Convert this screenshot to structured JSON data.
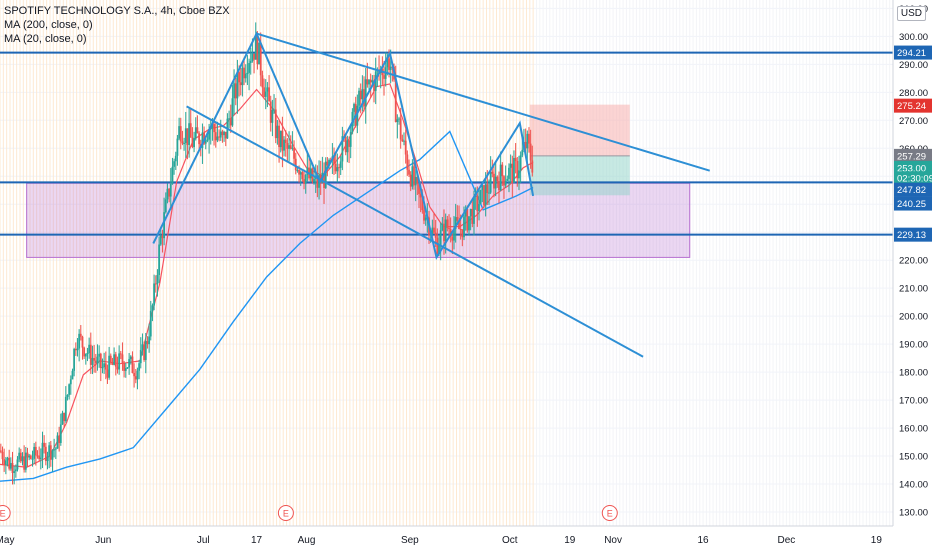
{
  "header": {
    "symbol_line": "SPOTIFY TECHNOLOGY S.A., 4h, Cboe BZX",
    "ma200_line": "MA (200, close, 0)",
    "ma20_line": "MA (20, close, 0)",
    "currency": "USD"
  },
  "chart_data": {
    "type": "candlestick",
    "y_axis": {
      "min": 125,
      "max": 313,
      "ticks": [
        130,
        140,
        150,
        160,
        170,
        180,
        190,
        200,
        210,
        220,
        230,
        240,
        250,
        260,
        270,
        280,
        290,
        300,
        310
      ]
    },
    "x_axis": {
      "months": [
        {
          "label": "May",
          "x": 0.0
        },
        {
          "label": "Jun",
          "x": 31.0
        },
        {
          "label": "Jul",
          "x": 61.0
        },
        {
          "label": "17",
          "x": 77.0
        },
        {
          "label": "Aug",
          "x": 92.0
        },
        {
          "label": "Sep",
          "x": 123.0
        },
        {
          "label": "Oct",
          "x": 153.0
        },
        {
          "label": "19",
          "x": 171.0
        },
        {
          "label": "Nov",
          "x": 184.0
        },
        {
          "label": "16",
          "x": 211.0
        },
        {
          "label": "Dec",
          "x": 236.0
        },
        {
          "label": "19",
          "x": 263.0
        }
      ],
      "range": [
        0,
        268
      ]
    },
    "price_labels": [
      {
        "value": "294.21",
        "price": 294.21,
        "color": "#1e66b4"
      },
      {
        "value": "275.24",
        "price": 275.24,
        "color": "#e3342f"
      },
      {
        "value": "257.29",
        "price": 257.29,
        "color": "#787b86"
      },
      {
        "value": "253.00",
        "price": 253.0,
        "color": "#26a69a"
      },
      {
        "value": "02:30:09",
        "price": 249.3,
        "color": "#26a69a"
      },
      {
        "value": "247.82",
        "price": 245.2,
        "color": "#1e66b4"
      },
      {
        "value": "240.25",
        "price": 240.25,
        "color": "#1e66b4"
      },
      {
        "value": "229.13",
        "price": 229.13,
        "color": "#1e66b4"
      }
    ],
    "horizontal_lines": [
      294.21,
      247.82,
      229.13
    ],
    "support_zone": {
      "x0": 8,
      "x1": 207,
      "y0": 221,
      "y1": 247.5,
      "color": "#b66fd0"
    },
    "trade_box": {
      "x0": 159,
      "x1": 189,
      "entry": 257.29,
      "stop": 275.6,
      "target": 243.2
    },
    "trend_lines": [
      {
        "from": [
          77,
          301
        ],
        "to": [
          213,
          252
        ]
      },
      {
        "from": [
          56,
          275
        ],
        "to": [
          193,
          185.5
        ]
      }
    ],
    "pattern_lines": [
      {
        "points": [
          [
            46,
            226
          ],
          [
            77,
            301
          ],
          [
            96,
            248
          ],
          [
            117,
            294
          ],
          [
            131,
            221
          ],
          [
            156,
            269
          ],
          [
            160,
            243
          ]
        ]
      }
    ],
    "earnings_markers": [
      {
        "label": "E",
        "x": 0.8
      },
      {
        "label": "E",
        "x": 85.8
      },
      {
        "label": "E",
        "x": 183
      }
    ],
    "colors": {
      "up": "#26a69a",
      "down": "#ef5350",
      "ma20": "#f7525f",
      "ma200": "#2196f3",
      "drawing": "#2d8fd5",
      "hline": "#1e66b4",
      "grid": "#f0f3fa"
    },
    "anchors": [
      [
        0,
        152
      ],
      [
        3,
        147
      ],
      [
        7,
        148
      ],
      [
        12,
        151
      ],
      [
        17,
        153
      ],
      [
        20,
        170
      ],
      [
        23,
        193
      ],
      [
        27,
        186
      ],
      [
        31,
        181
      ],
      [
        37,
        184
      ],
      [
        41,
        181
      ],
      [
        44,
        190
      ],
      [
        46,
        205
      ],
      [
        48,
        226
      ],
      [
        50,
        240
      ],
      [
        54,
        268
      ],
      [
        58,
        262
      ],
      [
        63,
        268
      ],
      [
        67,
        262
      ],
      [
        71,
        282
      ],
      [
        74,
        292
      ],
      [
        77,
        297
      ],
      [
        80,
        278
      ],
      [
        84,
        262
      ],
      [
        88,
        257
      ],
      [
        92,
        250
      ],
      [
        95,
        247
      ],
      [
        99,
        252
      ],
      [
        104,
        263
      ],
      [
        108,
        277
      ],
      [
        112,
        284
      ],
      [
        117,
        292
      ],
      [
        119,
        272
      ],
      [
        122,
        256
      ],
      [
        125,
        244
      ],
      [
        128,
        236
      ],
      [
        131,
        226
      ],
      [
        134,
        232
      ],
      [
        138,
        231
      ],
      [
        141,
        236
      ],
      [
        145,
        243
      ],
      [
        148,
        249
      ],
      [
        152,
        251
      ],
      [
        155,
        252
      ],
      [
        158,
        262
      ],
      [
        159,
        258
      ],
      [
        160,
        254
      ]
    ],
    "ma200": [
      [
        0,
        141
      ],
      [
        10,
        142
      ],
      [
        20,
        146
      ],
      [
        30,
        149
      ],
      [
        40,
        153
      ],
      [
        50,
        167
      ],
      [
        60,
        181
      ],
      [
        70,
        198
      ],
      [
        80,
        214
      ],
      [
        90,
        226
      ],
      [
        100,
        236
      ],
      [
        110,
        244
      ],
      [
        120,
        252
      ],
      [
        126,
        256
      ],
      [
        135,
        266
      ],
      [
        145,
        238
      ],
      [
        155,
        243
      ],
      [
        160,
        246
      ]
    ],
    "ma20": [
      [
        0,
        147
      ],
      [
        8,
        146
      ],
      [
        15,
        150
      ],
      [
        20,
        162
      ],
      [
        25,
        179
      ],
      [
        30,
        184
      ],
      [
        36,
        183
      ],
      [
        42,
        184
      ],
      [
        48,
        212
      ],
      [
        53,
        248
      ],
      [
        58,
        263
      ],
      [
        63,
        267
      ],
      [
        67,
        268
      ],
      [
        72,
        274
      ],
      [
        77,
        281
      ],
      [
        82,
        274
      ],
      [
        88,
        261
      ],
      [
        92,
        253
      ],
      [
        97,
        250
      ],
      [
        102,
        257
      ],
      [
        108,
        271
      ],
      [
        113,
        282
      ],
      [
        117,
        283
      ],
      [
        121,
        270
      ],
      [
        125,
        255
      ],
      [
        129,
        239
      ],
      [
        133,
        232
      ],
      [
        138,
        232
      ],
      [
        143,
        236
      ],
      [
        148,
        243
      ],
      [
        153,
        247
      ],
      [
        157,
        253
      ],
      [
        160,
        255
      ]
    ]
  }
}
